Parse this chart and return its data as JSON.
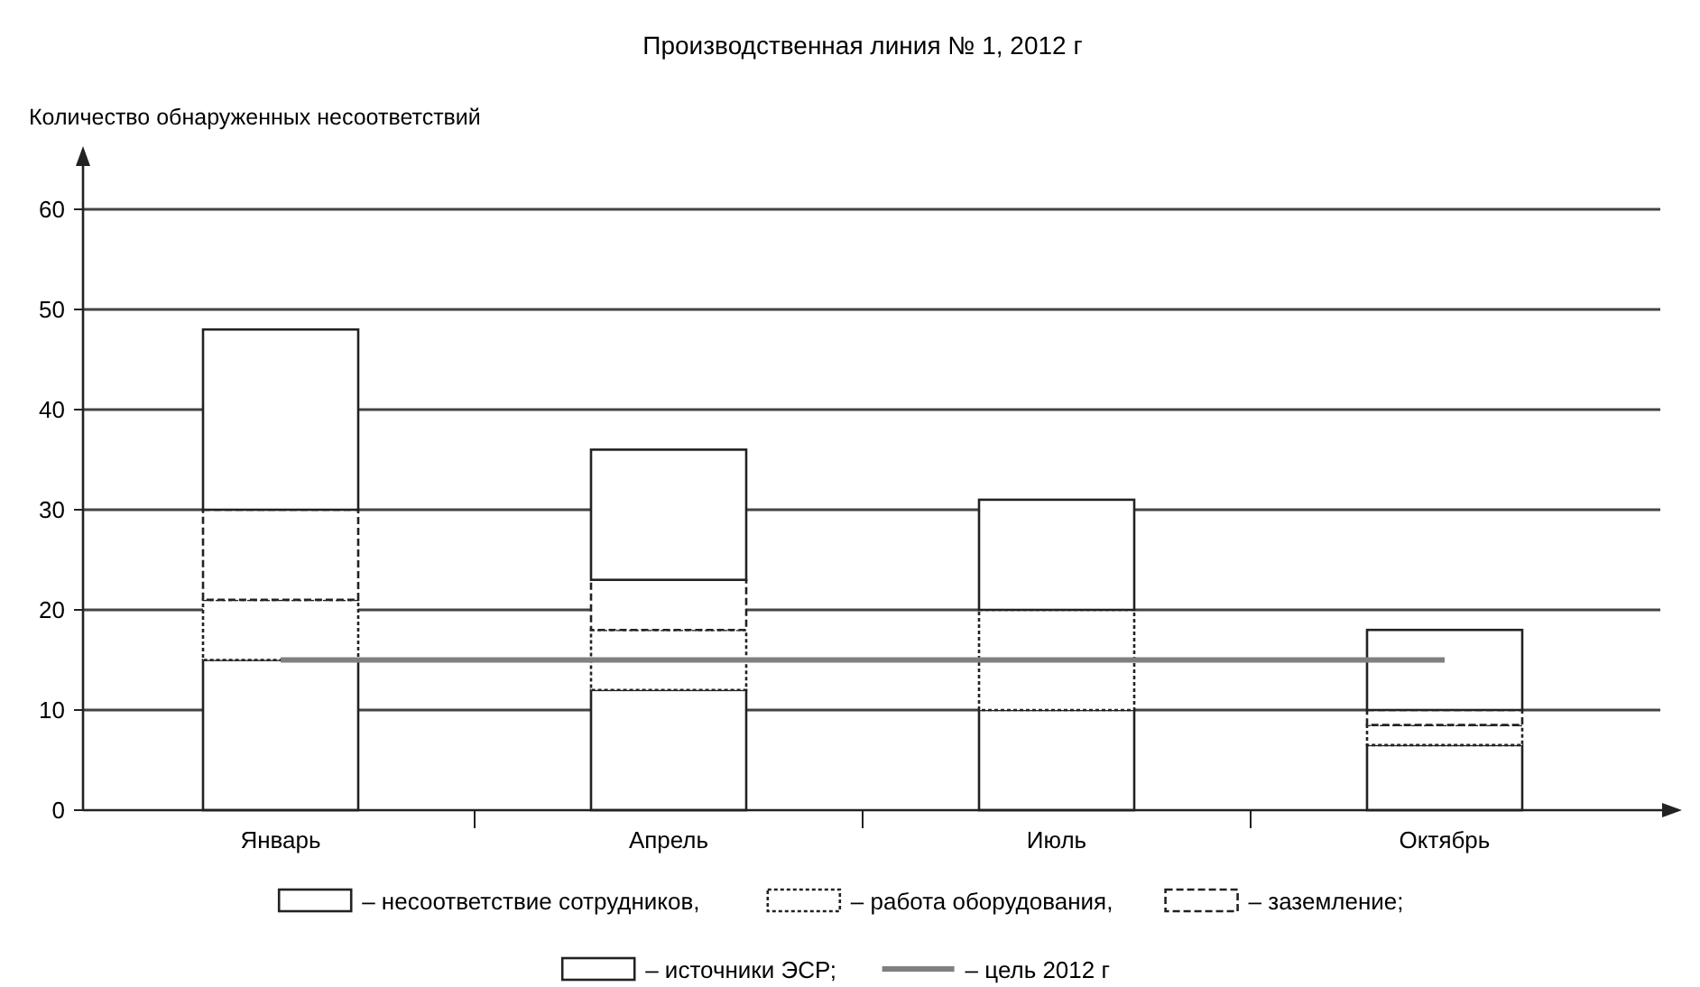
{
  "chart_data": {
    "type": "bar",
    "title": "Производственная линия № 1, 2012 г",
    "ylabel": "Количество обнаруженных несоответствий",
    "categories": [
      "Январь",
      "Апрель",
      "Июль",
      "Октябрь"
    ],
    "stacked": true,
    "series": [
      {
        "name": "– несоответствие сотрудников,",
        "color": "#ffffff",
        "values": [
          15,
          12,
          10,
          6.5
        ]
      },
      {
        "name": "– работа оборудования,",
        "color": "#ffffff",
        "values": [
          6,
          6,
          10,
          2
        ]
      },
      {
        "name": "– заземление;",
        "color": "#ffffff",
        "values": [
          9,
          5,
          0,
          1.5
        ]
      },
      {
        "name": "– источники ЭСР;",
        "color": "#ffffff",
        "values": [
          18,
          13,
          11,
          8
        ]
      },
      {
        "name": "– цель 2012 г",
        "type": "line",
        "color": "#808080",
        "values": [
          15,
          15,
          15,
          15
        ]
      }
    ],
    "ylim": [
      0,
      60
    ],
    "yticks": [
      0,
      10,
      20,
      30,
      40,
      50,
      60
    ],
    "grid": "y",
    "legend": "bottom"
  }
}
